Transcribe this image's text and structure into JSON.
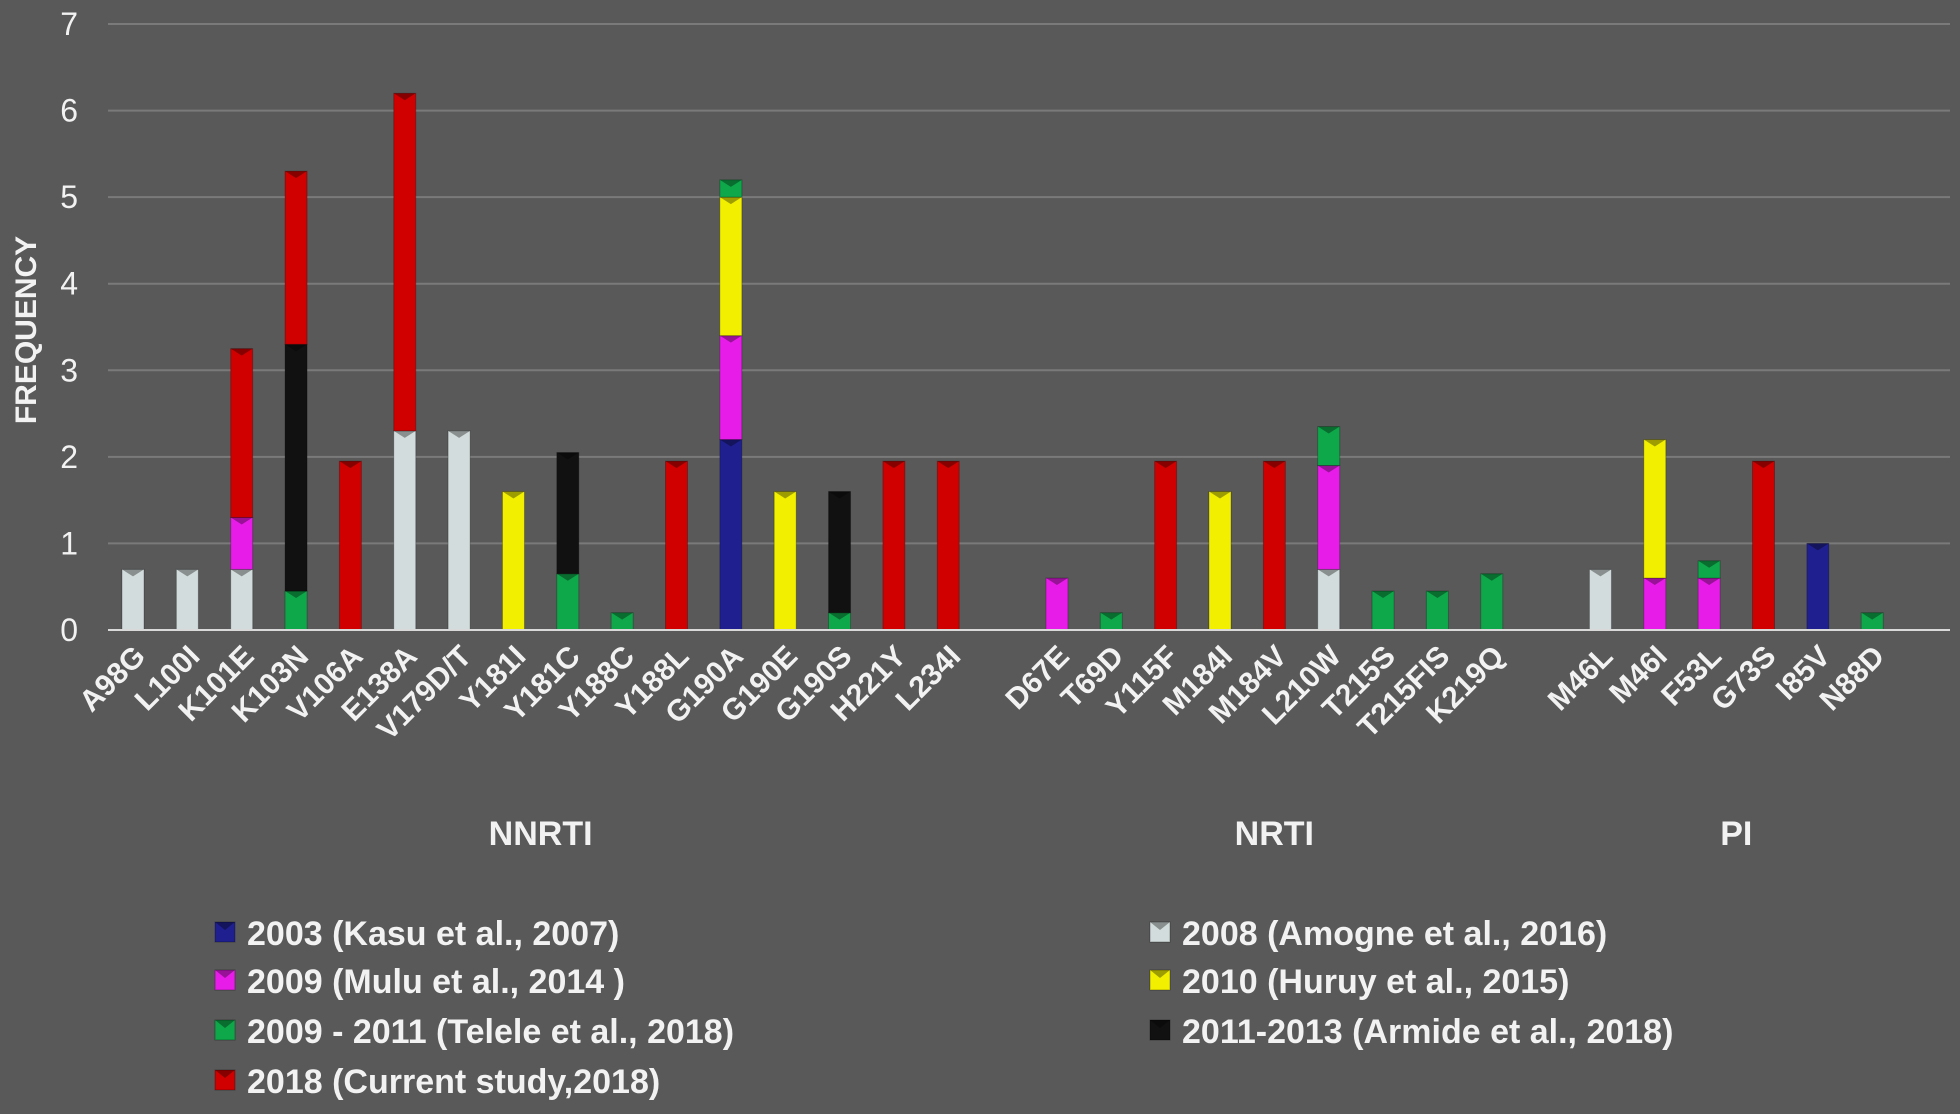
{
  "chart_data": {
    "type": "bar",
    "stacked": true,
    "title": "",
    "ylabel": "FREQUENCY",
    "xlabel": "",
    "ylim": [
      0,
      7
    ],
    "yticks": [
      0,
      1,
      2,
      3,
      4,
      5,
      6,
      7
    ],
    "grid": true,
    "legend_position": "bottom",
    "colors": {
      "background": "#595959",
      "grid": "#7a7a7a",
      "text": "#f2f2f2",
      "axis": "#d9d9d9"
    },
    "groups": [
      {
        "label": "NNRTI",
        "categories": [
          "A98G",
          "L100I",
          "K101E",
          "K103N",
          "V106A",
          "E138A",
          "V179D/T",
          "Y181I",
          "Y181C",
          "Y188C",
          "Y188L",
          "G190A",
          "G190E",
          "G190S",
          "H221Y",
          "L234I"
        ]
      },
      {
        "label": "NRTI",
        "categories": [
          "D67E",
          "T69D",
          "Y115F",
          "M184I",
          "M184V",
          "L210W",
          "T215S",
          "T215FIS",
          "K219Q"
        ]
      },
      {
        "label": "PI",
        "categories": [
          "M46L",
          "M46I",
          "F53L",
          "G73S",
          "I85V",
          "N88D"
        ]
      }
    ],
    "series": [
      {
        "name": "2003 (Kasu et al., 2007)",
        "color": "#1f1f8f",
        "values": {
          "G190A": 2.2,
          "I85V": 1.0
        }
      },
      {
        "name": "2008 (Amogne et al., 2016)",
        "color": "#d3dcdc",
        "values": {
          "A98G": 0.7,
          "L100I": 0.7,
          "K101E": 0.7,
          "E138A": 2.3,
          "V179D/T": 2.3,
          "L210W": 0.7,
          "M46L": 0.7
        }
      },
      {
        "name": "2009 (Mulu et al., 2014 )",
        "color": "#e81ce8",
        "values": {
          "K101E": 0.6,
          "G190A": 1.2,
          "D67E": 0.6,
          "L210W": 1.2,
          "M46I": 0.6,
          "F53L": 0.6
        }
      },
      {
        "name": "2010 (Huruy et al., 2015)",
        "color": "#f2f000",
        "values": {
          "Y181I": 1.6,
          "G190A": 1.6,
          "G190E": 1.6,
          "M184I": 1.6,
          "M46I": 1.6
        }
      },
      {
        "name": "2009 - 2011 (Telele et al., 2018)",
        "color": "#0ea84a",
        "values": {
          "K103N": 0.45,
          "Y181C": 0.65,
          "Y188C": 0.2,
          "G190A": 0.2,
          "G190S": 0.2,
          "T69D": 0.2,
          "L210W": 0.45,
          "T215S": 0.45,
          "T215FIS": 0.45,
          "K219Q": 0.65,
          "F53L": 0.2,
          "N88D": 0.2
        }
      },
      {
        "name": "2011-2013 (Armide et al., 2018)",
        "color": "#111111",
        "values": {
          "K103N": 2.85,
          "Y181C": 1.4,
          "G190S": 1.4
        }
      },
      {
        "name": "2018 (Current study,2018)",
        "color": "#d00000",
        "values": {
          "K101E": 1.95,
          "K103N": 2.0,
          "V106A": 1.95,
          "E138A": 3.9,
          "Y188L": 1.95,
          "H221Y": 1.95,
          "L234I": 1.95,
          "Y115F": 1.95,
          "M184V": 1.95,
          "G73S": 1.95
        }
      }
    ]
  }
}
